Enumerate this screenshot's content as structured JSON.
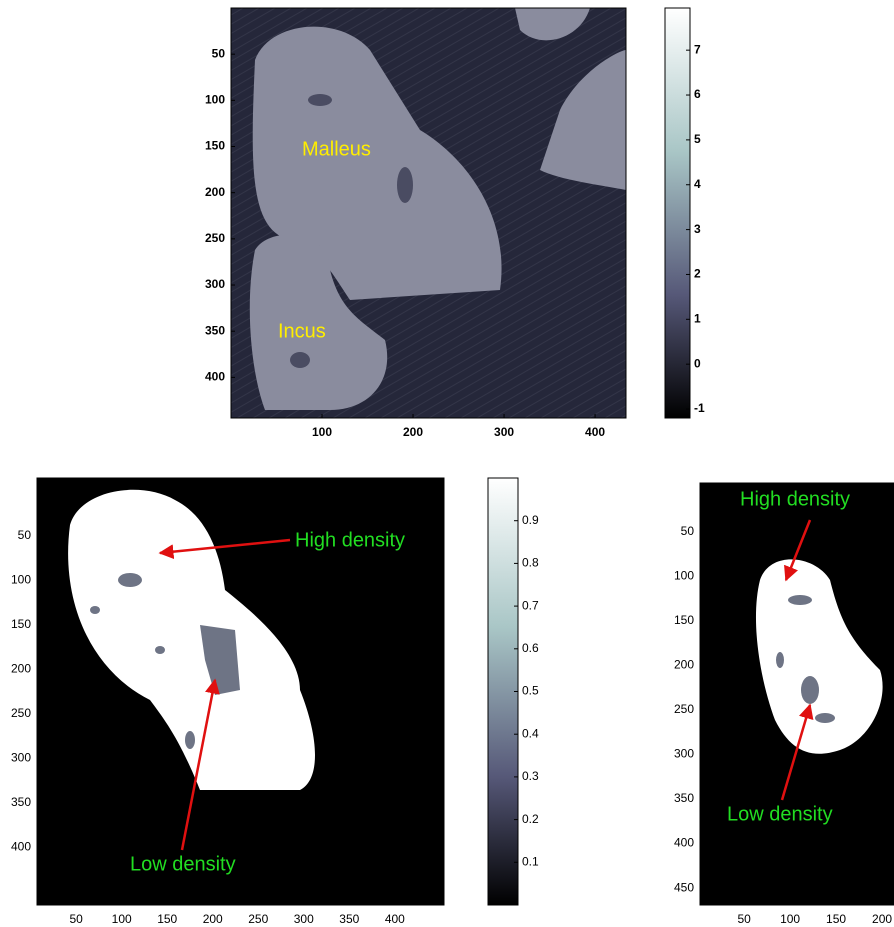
{
  "chart_data": [
    {
      "type": "image",
      "xlim": [
        0,
        434
      ],
      "ylim": [
        0,
        444
      ],
      "yreverse": true,
      "xticks": [
        100,
        200,
        300,
        400
      ],
      "yticks": [
        50,
        100,
        150,
        200,
        250,
        300,
        350,
        400
      ],
      "annotations": [
        "Malleus",
        "Incus"
      ]
    },
    {
      "type": "colorbar",
      "ylim": [
        -1.2,
        7.94
      ],
      "yticks": [
        -1,
        0,
        1,
        2,
        3,
        4,
        5,
        6,
        7
      ]
    },
    {
      "type": "image",
      "xlim": [
        7,
        454
      ],
      "ylim": [
        -15,
        465
      ],
      "yreverse": true,
      "xticks": [
        50,
        100,
        150,
        200,
        250,
        300,
        350,
        400
      ],
      "yticks": [
        50,
        100,
        150,
        200,
        250,
        300,
        350,
        400
      ],
      "annotations": [
        "High density",
        "Low density"
      ]
    },
    {
      "type": "colorbar",
      "ylim": [
        0,
        1
      ],
      "yticks": [
        0.1,
        0.2,
        0.3,
        0.4,
        0.5,
        0.6,
        0.7,
        0.8,
        0.9
      ]
    },
    {
      "type": "image",
      "xlim": [
        2,
        213
      ],
      "ylim": [
        -5,
        469
      ],
      "yreverse": true,
      "xticks": [
        50,
        100,
        150,
        200
      ],
      "yticks": [
        50,
        100,
        150,
        200,
        250,
        300,
        350,
        400,
        450
      ],
      "annotations": [
        "High density",
        "Low density"
      ]
    }
  ]
}
